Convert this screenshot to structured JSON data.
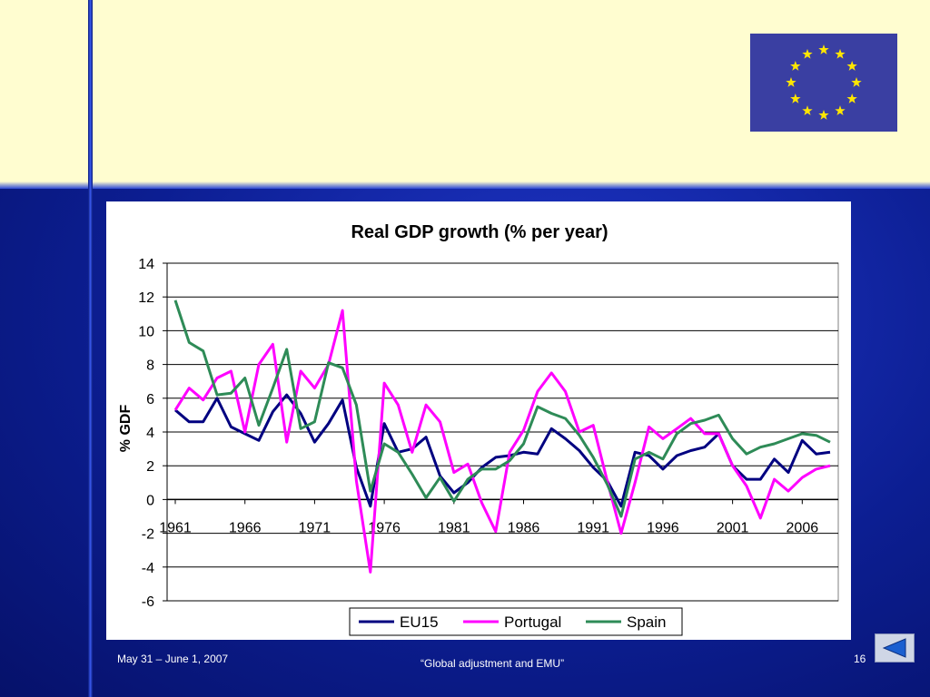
{
  "slide": {
    "date": "May 31 – June 1, 2007",
    "footer_title": "“Global adjustment and EMU”",
    "page_number": "16",
    "nav_icon": "back-arrow-icon",
    "flag_icon": "eu-flag-icon",
    "colors": {
      "band": "#fffdd0",
      "background": "#1228a8",
      "flag": "#3a3fa2",
      "stars": "#ffe600"
    }
  },
  "chart_data": {
    "type": "line",
    "title": "Real GDP growth (% per year)",
    "xlabel": "",
    "ylabel": "% GDF",
    "ylim": [
      -6,
      14
    ],
    "yticks": [
      "14",
      "12",
      "10",
      "8",
      "6",
      "4",
      "2",
      "0",
      "-2",
      "-4",
      "-6"
    ],
    "xtick_labels": [
      "1961",
      "1966",
      "1971",
      "1976",
      "1981",
      "1986",
      "1991",
      "1996",
      "2001",
      "2006"
    ],
    "grid": "horizontal",
    "legend": "bottom",
    "x": [
      1961,
      1962,
      1963,
      1964,
      1965,
      1966,
      1967,
      1968,
      1969,
      1970,
      1971,
      1972,
      1973,
      1974,
      1975,
      1976,
      1977,
      1978,
      1979,
      1980,
      1981,
      1982,
      1983,
      1984,
      1985,
      1986,
      1987,
      1988,
      1989,
      1990,
      1991,
      1992,
      1993,
      1994,
      1995,
      1996,
      1997,
      1998,
      1999,
      2000,
      2001,
      2002,
      2003,
      2004,
      2005,
      2006,
      2007,
      2008
    ],
    "series": [
      {
        "name": "EU15",
        "color": "#000080",
        "values": [
          5.3,
          4.6,
          4.6,
          6.0,
          4.3,
          3.9,
          3.5,
          5.2,
          6.2,
          5.1,
          3.4,
          4.5,
          5.9,
          1.9,
          -0.4,
          4.5,
          2.8,
          3.0,
          3.7,
          1.4,
          0.4,
          1.0,
          1.9,
          2.5,
          2.6,
          2.8,
          2.7,
          4.2,
          3.6,
          2.9,
          1.9,
          1.1,
          -0.4,
          2.8,
          2.6,
          1.8,
          2.6,
          2.9,
          3.1,
          3.9,
          2.0,
          1.2,
          1.2,
          2.4,
          1.6,
          3.5,
          2.7,
          2.8
        ]
      },
      {
        "name": "Portugal",
        "color": "#ff00ff",
        "values": [
          5.3,
          6.6,
          5.9,
          7.2,
          7.6,
          4.0,
          8.0,
          9.2,
          3.4,
          7.6,
          6.6,
          8.0,
          11.2,
          1.1,
          -4.3,
          6.9,
          5.6,
          2.8,
          5.6,
          4.6,
          1.6,
          2.1,
          -0.2,
          -1.9,
          2.8,
          4.1,
          6.4,
          7.5,
          6.4,
          4.0,
          4.4,
          1.1,
          -2.0,
          1.0,
          4.3,
          3.6,
          4.2,
          4.8,
          3.9,
          3.9,
          2.0,
          0.8,
          -1.1,
          1.2,
          0.5,
          1.3,
          1.8,
          2.0
        ]
      },
      {
        "name": "Spain",
        "color": "#2e8b57",
        "values": [
          11.8,
          9.3,
          8.8,
          6.2,
          6.3,
          7.2,
          4.4,
          6.6,
          8.9,
          4.2,
          4.6,
          8.1,
          7.8,
          5.6,
          0.5,
          3.3,
          2.8,
          1.5,
          0.1,
          1.3,
          -0.1,
          1.2,
          1.8,
          1.8,
          2.3,
          3.3,
          5.5,
          5.1,
          4.8,
          3.8,
          2.5,
          0.9,
          -1.0,
          2.4,
          2.8,
          2.4,
          3.9,
          4.5,
          4.7,
          5.0,
          3.6,
          2.7,
          3.1,
          3.3,
          3.6,
          3.9,
          3.8,
          3.4
        ]
      }
    ]
  }
}
